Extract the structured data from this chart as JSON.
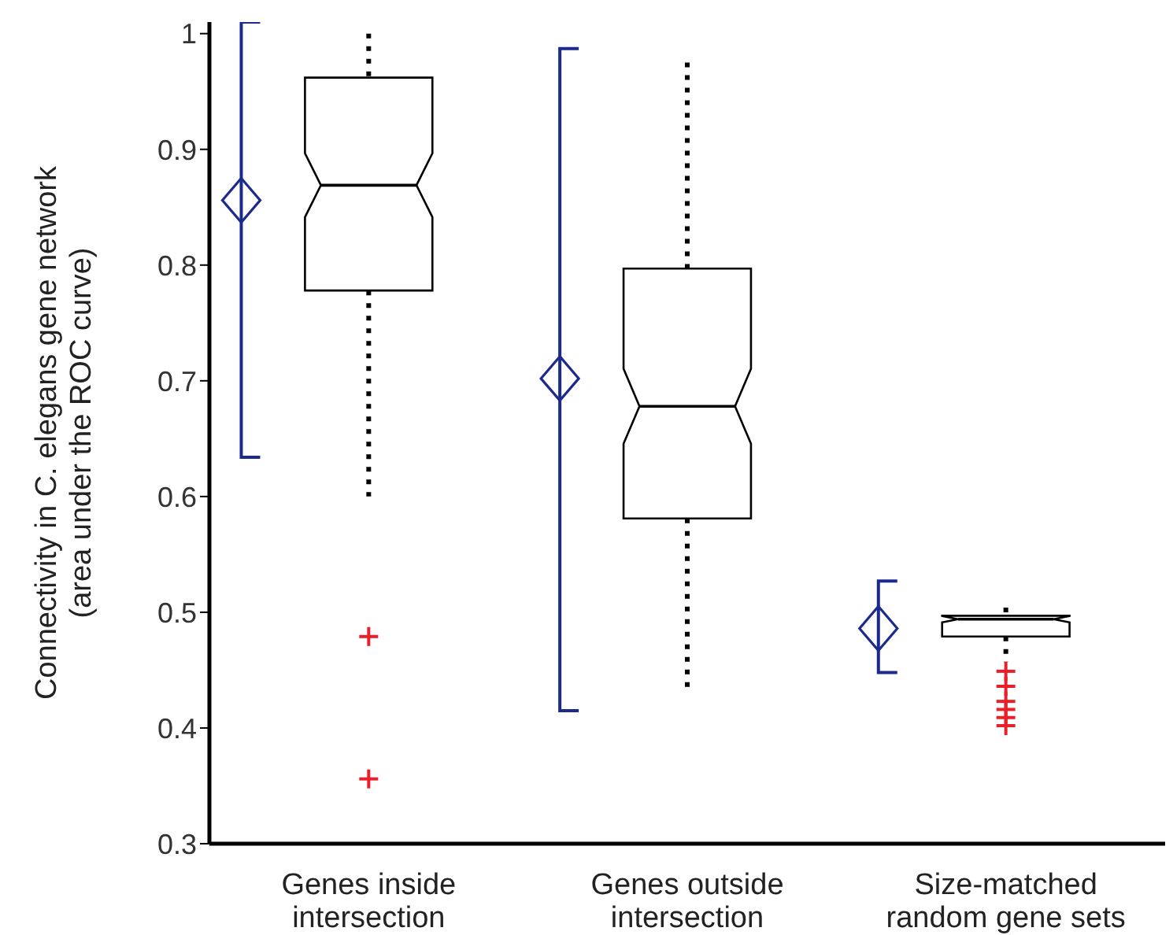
{
  "chart_data": {
    "type": "box",
    "ylabel": "Connectivity in C. elegans gene network (area under the ROC curve)",
    "categories": [
      "Genes inside intersection",
      "Genes outside intersection",
      "Size-matched random gene sets"
    ],
    "ylim": [
      0.3,
      1.01
    ],
    "yticks": [
      0.3,
      0.4,
      0.5,
      0.6,
      0.7,
      0.8,
      0.9,
      1
    ],
    "series": [
      {
        "type": "box",
        "color": "#000000",
        "boxes": [
          {
            "low": 0.6,
            "q1": 0.778,
            "median": 0.869,
            "q3": 0.962,
            "high": 1.0,
            "outliers": [
              0.479,
              0.356
            ]
          },
          {
            "low": 0.433,
            "q1": 0.581,
            "median": 0.678,
            "q3": 0.797,
            "high": 0.975
          },
          {
            "low": 0.457,
            "q1": 0.479,
            "median": 0.494,
            "q3": 0.497,
            "high": 0.504,
            "outliers": [
              0.449,
              0.436,
              0.423,
              0.416,
              0.409,
              0.402
            ]
          }
        ]
      },
      {
        "type": "scatter",
        "color": "#1c2a8c",
        "marker": "diamond",
        "x": [
          "Genes inside intersection",
          "Genes outside intersection",
          "Size-matched random gene sets"
        ],
        "values": [
          0.856,
          0.702,
          0.486
        ],
        "errors": [
          [
            0.634,
            1.01
          ],
          [
            0.415,
            0.987
          ],
          [
            0.448,
            0.527
          ]
        ]
      }
    ]
  }
}
